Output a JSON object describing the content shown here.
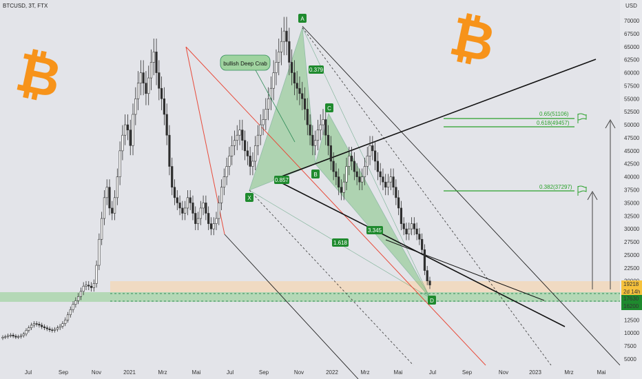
{
  "header": {
    "symbol": "BTCUSD, 3T, FTX"
  },
  "colors": {
    "background": "#e3e4e9",
    "up": "#2e2e2e",
    "down": "#2e2e2e",
    "accent_orange": "#f7931a",
    "green": "#2e8b57",
    "red": "#e84a3a",
    "label_green": "#1f8a2e",
    "fib_green": "#2aa12a"
  },
  "icons": [
    "bitcoin-logo",
    "bitcoin-logo",
    "flag-icon",
    "flag-icon",
    "arrow-up-icon",
    "arrow-up-icon"
  ],
  "annotations": {
    "pattern_name": "bullish Deep Crab",
    "points": [
      "X",
      "A",
      "B",
      "C",
      "D"
    ],
    "ratios": [
      "0.379",
      "0.857",
      "3.345",
      "1.618"
    ],
    "fib_levels": [
      "0.65(51106)",
      "0.618(49457)",
      "0.382(37297)"
    ]
  },
  "price_labels": {
    "current": "19218",
    "countdown": "2d 14h",
    "level1": "17630",
    "level2": "16200"
  },
  "chart_data": {
    "type": "candlestick",
    "title": "",
    "currency": "USD",
    "y_ticks": [
      "70000",
      "67500",
      "65000",
      "62500",
      "60000",
      "57500",
      "55000",
      "52500",
      "50000",
      "47500",
      "45000",
      "42500",
      "40000",
      "37500",
      "35000",
      "32500",
      "30000",
      "27500",
      "25000",
      "22500",
      "20000",
      "17500",
      "15000",
      "12500",
      "10000",
      "7500",
      "5000"
    ],
    "x_ticks": [
      "Jul",
      "Sep",
      "Nov",
      "2021",
      "Mrz",
      "Mai",
      "Jul",
      "Sep",
      "Nov",
      "2022",
      "Mrz",
      "Mai",
      "Jul",
      "Sep",
      "Nov",
      "2023",
      "Mrz",
      "Mai"
    ],
    "ylim": [
      3000,
      74000
    ],
    "approx_closes": [
      9200,
      9300,
      9500,
      9600,
      9400,
      9200,
      9300,
      9500,
      9800,
      10500,
      11000,
      11500,
      11800,
      11700,
      11500,
      11200,
      11000,
      10800,
      10600,
      10500,
      10700,
      11000,
      11300,
      11800,
      12500,
      13500,
      14500,
      15500,
      16200,
      17000,
      18000,
      19000,
      19200,
      19000,
      18700,
      19500,
      23000,
      28000,
      32000,
      36000,
      38000,
      34000,
      33000,
      36000,
      40000,
      45000,
      48000,
      50000,
      49000,
      46000,
      52000,
      55000,
      58000,
      60000,
      58000,
      56000,
      59000,
      62000,
      64000,
      60000,
      57000,
      55000,
      52000,
      48000,
      42000,
      38000,
      36000,
      35000,
      34000,
      33000,
      34000,
      36000,
      35000,
      33000,
      31000,
      32000,
      34000,
      35000,
      33000,
      31000,
      30000,
      31000,
      32000,
      35000,
      38000,
      40000,
      42000,
      44000,
      46000,
      47000,
      48000,
      49000,
      47000,
      45000,
      44000,
      42000,
      43000,
      46000,
      48000,
      50000,
      51000,
      53000,
      55000,
      57000,
      60000,
      62000,
      64000,
      66000,
      68000,
      66000,
      62000,
      60000,
      58000,
      57000,
      56000,
      55000,
      53000,
      50000,
      48000,
      46000,
      47000,
      49000,
      50000,
      51000,
      48000,
      46000,
      43000,
      41000,
      40000,
      38000,
      37000,
      39000,
      42000,
      44000,
      43000,
      41000,
      40000,
      39000,
      40000,
      42000,
      44000,
      46000,
      45000,
      43000,
      41000,
      40000,
      39000,
      38000,
      39000,
      40000,
      38000,
      36000,
      34000,
      31000,
      30000,
      29000,
      30000,
      31000,
      30000,
      29000,
      28000,
      26000,
      22000,
      20000,
      19218
    ],
    "series_name": "BTCUSD"
  }
}
